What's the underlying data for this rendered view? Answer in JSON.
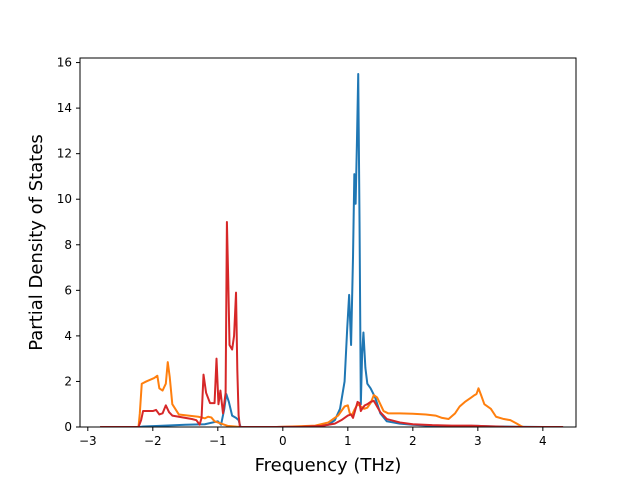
{
  "chart_data": {
    "type": "line",
    "title": "",
    "xlabel": "Frequency (THz)",
    "ylabel": "Partial Density of States",
    "xlim": [
      -3.12,
      4.51
    ],
    "ylim": [
      0,
      16.2
    ],
    "xticks": [
      -3,
      -2,
      -1,
      0,
      1,
      2,
      3,
      4
    ],
    "yticks": [
      0,
      2,
      4,
      6,
      8,
      10,
      12,
      14,
      16
    ],
    "grid": false,
    "legend": "none",
    "series": [
      {
        "color": "#1f77b4",
        "points": [
          [
            -2.8,
            0
          ],
          [
            -2.2,
            0
          ],
          [
            -2.15,
            0.02
          ],
          [
            -1.9,
            0.05
          ],
          [
            -1.5,
            0.1
          ],
          [
            -1.2,
            0.12
          ],
          [
            -1.0,
            0.25
          ],
          [
            -0.95,
            0.1
          ],
          [
            -0.9,
            0.8
          ],
          [
            -0.87,
            1.45
          ],
          [
            -0.83,
            1.1
          ],
          [
            -0.78,
            0.5
          ],
          [
            -0.72,
            0.4
          ],
          [
            -0.68,
            0.3
          ],
          [
            -0.65,
            0
          ],
          [
            -0.1,
            0
          ],
          [
            0.2,
            0.01
          ],
          [
            0.5,
            0.03
          ],
          [
            0.7,
            0.1
          ],
          [
            0.8,
            0.3
          ],
          [
            0.88,
            0.8
          ],
          [
            0.95,
            2.0
          ],
          [
            0.99,
            4.3
          ],
          [
            1.02,
            5.8
          ],
          [
            1.05,
            3.6
          ],
          [
            1.08,
            7.5
          ],
          [
            1.1,
            11.1
          ],
          [
            1.12,
            9.8
          ],
          [
            1.14,
            12.5
          ],
          [
            1.16,
            15.5
          ],
          [
            1.18,
            9.0
          ],
          [
            1.2,
            1.0
          ],
          [
            1.22,
            3.2
          ],
          [
            1.24,
            4.15
          ],
          [
            1.27,
            2.6
          ],
          [
            1.3,
            1.9
          ],
          [
            1.35,
            1.7
          ],
          [
            1.42,
            1.3
          ],
          [
            1.5,
            0.6
          ],
          [
            1.6,
            0.25
          ],
          [
            1.8,
            0.15
          ],
          [
            2.0,
            0.1
          ],
          [
            2.3,
            0.05
          ],
          [
            2.6,
            0.04
          ],
          [
            3.0,
            0.05
          ],
          [
            3.2,
            0.03
          ],
          [
            3.6,
            0.01
          ],
          [
            4.0,
            0
          ],
          [
            4.3,
            0
          ]
        ]
      },
      {
        "color": "#ff7f0e",
        "points": [
          [
            -2.8,
            0
          ],
          [
            -2.22,
            0
          ],
          [
            -2.2,
            0.6
          ],
          [
            -2.17,
            1.9
          ],
          [
            -2.1,
            2.0
          ],
          [
            -1.98,
            2.15
          ],
          [
            -1.93,
            2.25
          ],
          [
            -1.9,
            1.7
          ],
          [
            -1.85,
            1.6
          ],
          [
            -1.8,
            1.9
          ],
          [
            -1.77,
            2.85
          ],
          [
            -1.74,
            2.2
          ],
          [
            -1.7,
            1.0
          ],
          [
            -1.6,
            0.55
          ],
          [
            -1.45,
            0.5
          ],
          [
            -1.3,
            0.45
          ],
          [
            -1.2,
            0.38
          ],
          [
            -1.15,
            0.45
          ],
          [
            -1.1,
            0.42
          ],
          [
            -1.05,
            0.25
          ],
          [
            -1.0,
            0.2
          ],
          [
            -0.95,
            0.15
          ],
          [
            -0.9,
            0.1
          ],
          [
            -0.85,
            0.05
          ],
          [
            -0.65,
            0
          ],
          [
            -0.1,
            0
          ],
          [
            0.2,
            0.03
          ],
          [
            0.5,
            0.06
          ],
          [
            0.7,
            0.2
          ],
          [
            0.85,
            0.5
          ],
          [
            0.95,
            0.9
          ],
          [
            1.0,
            0.95
          ],
          [
            1.03,
            0.6
          ],
          [
            1.06,
            0.5
          ],
          [
            1.1,
            0.75
          ],
          [
            1.15,
            1.0
          ],
          [
            1.2,
            0.9
          ],
          [
            1.25,
            0.8
          ],
          [
            1.3,
            0.85
          ],
          [
            1.35,
            1.05
          ],
          [
            1.4,
            1.4
          ],
          [
            1.45,
            1.3
          ],
          [
            1.5,
            1.0
          ],
          [
            1.55,
            0.7
          ],
          [
            1.62,
            0.6
          ],
          [
            1.8,
            0.6
          ],
          [
            2.0,
            0.58
          ],
          [
            2.2,
            0.55
          ],
          [
            2.35,
            0.5
          ],
          [
            2.45,
            0.4
          ],
          [
            2.55,
            0.35
          ],
          [
            2.65,
            0.6
          ],
          [
            2.72,
            0.9
          ],
          [
            2.8,
            1.1
          ],
          [
            2.9,
            1.3
          ],
          [
            2.95,
            1.4
          ],
          [
            2.98,
            1.45
          ],
          [
            3.01,
            1.7
          ],
          [
            3.05,
            1.4
          ],
          [
            3.1,
            1.0
          ],
          [
            3.2,
            0.8
          ],
          [
            3.28,
            0.45
          ],
          [
            3.4,
            0.35
          ],
          [
            3.5,
            0.3
          ],
          [
            3.6,
            0.15
          ],
          [
            3.66,
            0.05
          ],
          [
            3.7,
            0
          ],
          [
            4.3,
            0
          ]
        ]
      },
      {
        "color": "#d62728",
        "points": [
          [
            -2.8,
            0
          ],
          [
            -2.22,
            0
          ],
          [
            -2.18,
            0.3
          ],
          [
            -2.15,
            0.7
          ],
          [
            -2.0,
            0.7
          ],
          [
            -1.95,
            0.75
          ],
          [
            -1.9,
            0.55
          ],
          [
            -1.85,
            0.6
          ],
          [
            -1.8,
            0.95
          ],
          [
            -1.75,
            0.65
          ],
          [
            -1.7,
            0.5
          ],
          [
            -1.6,
            0.45
          ],
          [
            -1.5,
            0.4
          ],
          [
            -1.4,
            0.35
          ],
          [
            -1.33,
            0.3
          ],
          [
            -1.28,
            0.1
          ],
          [
            -1.25,
            0.4
          ],
          [
            -1.22,
            2.3
          ],
          [
            -1.18,
            1.5
          ],
          [
            -1.12,
            1.05
          ],
          [
            -1.05,
            1.05
          ],
          [
            -1.02,
            3.0
          ],
          [
            -0.99,
            1.0
          ],
          [
            -0.96,
            1.6
          ],
          [
            -0.92,
            0.6
          ],
          [
            -0.88,
            1.5
          ],
          [
            -0.86,
            9.0
          ],
          [
            -0.84,
            6.5
          ],
          [
            -0.82,
            3.6
          ],
          [
            -0.78,
            3.4
          ],
          [
            -0.75,
            4.0
          ],
          [
            -0.72,
            5.9
          ],
          [
            -0.7,
            2.5
          ],
          [
            -0.68,
            0.5
          ],
          [
            -0.66,
            0
          ],
          [
            -0.1,
            0
          ],
          [
            0.3,
            0.01
          ],
          [
            0.6,
            0.05
          ],
          [
            0.8,
            0.15
          ],
          [
            0.9,
            0.3
          ],
          [
            1.0,
            0.5
          ],
          [
            1.05,
            0.55
          ],
          [
            1.08,
            0.4
          ],
          [
            1.12,
            0.8
          ],
          [
            1.15,
            1.1
          ],
          [
            1.18,
            1.05
          ],
          [
            1.2,
            0.7
          ],
          [
            1.22,
            0.8
          ],
          [
            1.26,
            0.95
          ],
          [
            1.3,
            1.0
          ],
          [
            1.35,
            1.1
          ],
          [
            1.4,
            1.15
          ],
          [
            1.45,
            0.9
          ],
          [
            1.5,
            0.65
          ],
          [
            1.6,
            0.35
          ],
          [
            1.8,
            0.2
          ],
          [
            2.0,
            0.12
          ],
          [
            2.3,
            0.08
          ],
          [
            2.6,
            0.06
          ],
          [
            2.9,
            0.06
          ],
          [
            3.1,
            0.04
          ],
          [
            3.4,
            0.01
          ],
          [
            3.7,
            0
          ],
          [
            4.3,
            0
          ]
        ]
      }
    ]
  }
}
